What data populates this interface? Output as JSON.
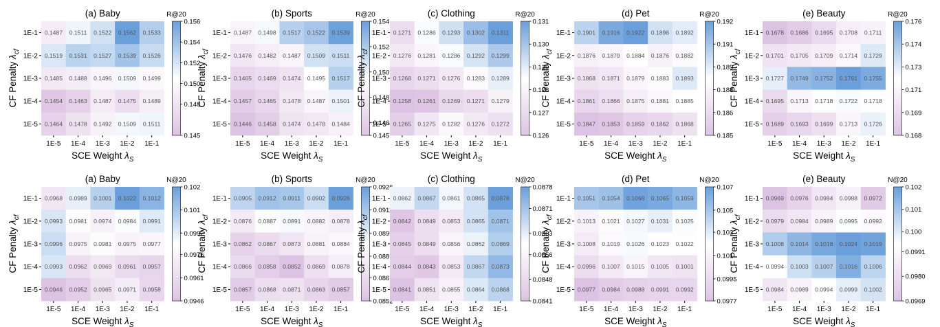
{
  "xlabel_main": "SCE Weight ",
  "xlabel_sym": "λ",
  "xlabel_sub": "S",
  "ylabel_main": "CF Penalty ",
  "ylabel_sym": "λ",
  "ylabel_sub": "cf",
  "x_ticks": [
    "1E-5",
    "1E-4",
    "1E-3",
    "1E-2",
    "1E-1"
  ],
  "y_ticks": [
    "1E-1",
    "1E-2",
    "1E-3",
    "1E-4",
    "1E-5"
  ],
  "colors": {
    "high": "#6a9fdb",
    "mid": "#ffffff",
    "low": "#ddc3e3"
  },
  "chart_data": [
    {
      "type": "heatmap",
      "title": "(a) Baby",
      "metric": "R@20",
      "cbar_ticks": [
        "0.156",
        "0.154",
        "0.152",
        "0.150",
        "0.148",
        "0.145"
      ],
      "cbar_tick_values": [
        0.156,
        0.154,
        0.152,
        0.15,
        0.148,
        0.145
      ],
      "range": [
        0.145,
        0.156
      ],
      "values": [
        [
          "0.1487",
          "0.1511",
          "0.1522",
          "0.1562",
          "0.1533"
        ],
        [
          "0.1519",
          "0.1531",
          "0.1527",
          "0.1539",
          "0.1526"
        ],
        [
          "0.1485",
          "0.1488",
          "0.1496",
          "0.1509",
          "0.1499"
        ],
        [
          "0.1454",
          "0.1463",
          "0.1487",
          "0.1475",
          "0.1489"
        ],
        [
          "0.1464",
          "0.1478",
          "0.1492",
          "0.1509",
          "0.1511"
        ]
      ]
    },
    {
      "type": "heatmap",
      "title": "(b) Sports",
      "metric": "R@20",
      "cbar_ticks": [
        "0.154",
        "0.152",
        "0.150",
        "0.148",
        "0.146",
        "0.145"
      ],
      "cbar_tick_values": [
        0.154,
        0.152,
        0.15,
        0.148,
        0.146,
        0.145
      ],
      "range": [
        0.145,
        0.154
      ],
      "values": [
        [
          "0.1487",
          "0.1498",
          "0.1517",
          "0.1522",
          "0.1539"
        ],
        [
          "0.1476",
          "0.1482",
          "0.1487",
          "0.1509",
          "0.1511"
        ],
        [
          "0.1465",
          "0.1469",
          "0.1474",
          "0.1495",
          "0.1517"
        ],
        [
          "0.1457",
          "0.1465",
          "0.1478",
          "0.1487",
          "0.1501"
        ],
        [
          "0.1446",
          "0.1458",
          "0.1474",
          "0.1478",
          "0.1484"
        ]
      ]
    },
    {
      "type": "heatmap",
      "title": "(c) Clothing",
      "metric": "R@20",
      "cbar_ticks": [
        "0.131",
        "0.130",
        "0.129",
        "0.128",
        "0.127",
        "0.126"
      ],
      "cbar_tick_values": [
        0.131,
        0.13,
        0.129,
        0.128,
        0.127,
        0.126
      ],
      "range": [
        0.126,
        0.131
      ],
      "values": [
        [
          "0.1271",
          "0.1286",
          "0.1293",
          "0.1302",
          "0.1311"
        ],
        [
          "0.1276",
          "0.1281",
          "0.1286",
          "0.1292",
          "0.1299"
        ],
        [
          "0.1268",
          "0.1271",
          "0.1276",
          "0.1283",
          "0.1289"
        ],
        [
          "0.1258",
          "0.1261",
          "0.1269",
          "0.1271",
          "0.1279"
        ],
        [
          "0.1265",
          "0.1275",
          "0.1282",
          "0.1276",
          "0.1272"
        ]
      ]
    },
    {
      "type": "heatmap",
      "title": "(d) Pet",
      "metric": "R@20",
      "cbar_ticks": [
        "0.192",
        "0.191",
        "0.189",
        "0.188",
        "0.186",
        "0.185"
      ],
      "cbar_tick_values": [
        0.192,
        0.1906,
        0.1892,
        0.1878,
        0.1864,
        0.185
      ],
      "range": [
        0.185,
        0.192
      ],
      "values": [
        [
          "0.1901",
          "0.1916",
          "0.1922",
          "0.1896",
          "0.1892"
        ],
        [
          "0.1876",
          "0.1879",
          "0.1884",
          "0.1876",
          "0.1882"
        ],
        [
          "0.1868",
          "0.1871",
          "0.1879",
          "0.1883",
          "0.1893"
        ],
        [
          "0.1861",
          "0.1866",
          "0.1875",
          "0.1881",
          "0.1885"
        ],
        [
          "0.1847",
          "0.1853",
          "0.1859",
          "0.1862",
          "0.1868"
        ]
      ]
    },
    {
      "type": "heatmap",
      "title": "(e) Beauty",
      "metric": "R@20",
      "cbar_ticks": [
        "0.176",
        "0.174",
        "0.173",
        "0.171",
        "0.169",
        "0.168"
      ],
      "cbar_tick_values": [
        0.176,
        0.1744,
        0.1728,
        0.1712,
        0.1696,
        0.168
      ],
      "range": [
        0.168,
        0.176
      ],
      "values": [
        [
          "0.1678",
          "0.1686",
          "0.1695",
          "0.1708",
          "0.1711"
        ],
        [
          "0.1701",
          "0.1705",
          "0.1709",
          "0.1714",
          "0.1729"
        ],
        [
          "0.1727",
          "0.1749",
          "0.1752",
          "0.1761",
          "0.1755"
        ],
        [
          "0.1695",
          "0.1713",
          "0.1718",
          "0.1722",
          "0.1718"
        ],
        [
          "0.1689",
          "0.1693",
          "0.1699",
          "0.1713",
          "0.1726"
        ]
      ]
    },
    {
      "type": "heatmap",
      "title": "(a) Baby",
      "metric": "N@20",
      "cbar_ticks": [
        "0.102",
        "0.101",
        "0.0992",
        "0.0976",
        "0.0961",
        "0.0946"
      ],
      "cbar_tick_values": [
        0.102,
        0.1005,
        0.099,
        0.0976,
        0.0961,
        0.0946
      ],
      "range": [
        0.0946,
        0.102
      ],
      "values": [
        [
          "0.0968",
          "0.0989",
          "0.1001",
          "0.1022",
          "0.1012"
        ],
        [
          "0.0993",
          "0.0981",
          "0.0974",
          "0.0984",
          "0.0991"
        ],
        [
          "0.0996",
          "0.0975",
          "0.0981",
          "0.0975",
          "0.0977"
        ],
        [
          "0.0993",
          "0.0962",
          "0.0969",
          "0.0961",
          "0.0957"
        ],
        [
          "0.0946",
          "0.0952",
          "0.0965",
          "0.0971",
          "0.0958"
        ]
      ]
    },
    {
      "type": "heatmap",
      "title": "(b) Sports",
      "metric": "N@20",
      "cbar_ticks": [
        "0.0926",
        "0.0911",
        "0.0896",
        "0.0881",
        "0.0867",
        "0.0852"
      ],
      "cbar_tick_values": [
        0.0926,
        0.0911,
        0.0896,
        0.0881,
        0.0867,
        0.0852
      ],
      "range": [
        0.0852,
        0.0926
      ],
      "values": [
        [
          "0.0905",
          "0.0912",
          "0.0911",
          "0.0902",
          "0.0926"
        ],
        [
          "0.0876",
          "0.0887",
          "0.0891",
          "0.0882",
          "0.0878"
        ],
        [
          "0.0862",
          "0.0867",
          "0.0873",
          "0.0881",
          "0.0884"
        ],
        [
          "0.0866",
          "0.0858",
          "0.0852",
          "0.0869",
          "0.0878"
        ],
        [
          "0.0857",
          "0.0868",
          "0.0871",
          "0.0863",
          "0.0857"
        ]
      ]
    },
    {
      "type": "heatmap",
      "title": "(c) Clothing",
      "metric": "N@20",
      "cbar_ticks": [
        "0.0878",
        "0.0871",
        "0.0863",
        "0.0856",
        "0.0848",
        "0.0841"
      ],
      "cbar_tick_values": [
        0.0878,
        0.0871,
        0.0863,
        0.0856,
        0.0848,
        0.0841
      ],
      "range": [
        0.0841,
        0.0878
      ],
      "values": [
        [
          "0.0862",
          "0.0867",
          "0.0861",
          "0.0865",
          "0.0878"
        ],
        [
          "0.0842",
          "0.0849",
          "0.0853",
          "0.0865",
          "0.0871"
        ],
        [
          "0.0845",
          "0.0849",
          "0.0856",
          "0.0862",
          "0.0869"
        ],
        [
          "0.0844",
          "0.0843",
          "0.0853",
          "0.0867",
          "0.0873"
        ],
        [
          "0.0841",
          "0.0851",
          "0.0855",
          "0.0864",
          "0.0868"
        ]
      ]
    },
    {
      "type": "heatmap",
      "title": "(d) Pet",
      "metric": "N@20",
      "cbar_ticks": [
        "0.107",
        "0.105",
        "0.103",
        "0.101",
        "0.0995",
        "0.0977"
      ],
      "cbar_tick_values": [
        0.107,
        0.1051,
        0.1033,
        0.1014,
        0.0995,
        0.0977
      ],
      "range": [
        0.0977,
        0.107
      ],
      "values": [
        [
          "0.1051",
          "0.1054",
          "0.1068",
          "0.1065",
          "0.1059"
        ],
        [
          "0.1013",
          "0.1021",
          "0.1027",
          "0.1031",
          "0.1025"
        ],
        [
          "0.1008",
          "0.1019",
          "0.1026",
          "0.1023",
          "0.1022"
        ],
        [
          "0.0996",
          "0.1007",
          "0.1015",
          "0.1005",
          "0.1001"
        ],
        [
          "0.0977",
          "0.0984",
          "0.0988",
          "0.0991",
          "0.0992"
        ]
      ]
    },
    {
      "type": "heatmap",
      "title": "(e) Beauty",
      "metric": "N@20",
      "cbar_ticks": [
        "0.102",
        "0.101",
        "0.100",
        "0.0991",
        "0.0980",
        "0.0969"
      ],
      "cbar_tick_values": [
        0.102,
        0.101,
        0.1,
        0.0991,
        0.098,
        0.0969
      ],
      "range": [
        0.0969,
        0.102
      ],
      "values": [
        [
          "0.0969",
          "0.0976",
          "0.0984",
          "0.0988",
          "0.0972"
        ],
        [
          "0.0979",
          "0.0984",
          "0.0989",
          "0.0995",
          "0.0992"
        ],
        [
          "0.1008",
          "0.1014",
          "0.1018",
          "0.1024",
          "0.1019"
        ],
        [
          "0.0994",
          "0.1003",
          "0.1007",
          "0.1016",
          "0.1006"
        ],
        [
          "0.0984",
          "0.0989",
          "0.0994",
          "0.0999",
          "0.1002"
        ]
      ]
    }
  ]
}
